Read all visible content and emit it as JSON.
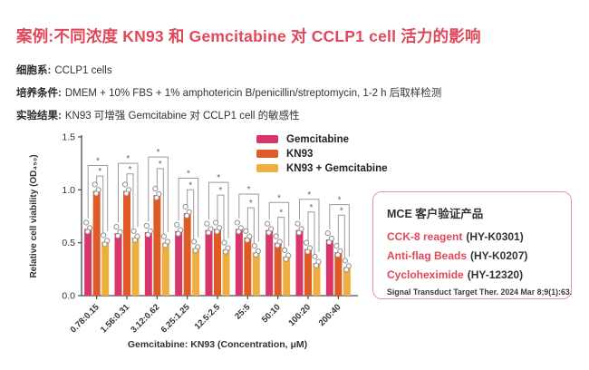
{
  "page": {
    "background": "#ffffff",
    "accent_color": "#e0485a"
  },
  "header": {
    "title": "案例:不同浓度 KN93 和 Gemcitabine 对 CCLP1 cell 活力的影响",
    "info_lines": [
      {
        "label": "细胞系:",
        "text": "CCLP1 cells"
      },
      {
        "label": "培养条件:",
        "text": "DMEM + 10% FBS + 1% amphotericin B/penicillin/streptomycin, 1-2 h 后取样检测"
      },
      {
        "label": "实验结果:",
        "text": "KN93 可增强 Gemcitabine 对 CCLP1 cell 的敏感性"
      }
    ]
  },
  "chart_data": {
    "type": "bar",
    "title": "",
    "xlabel": "Gemcitabine: KN93 (Concentration, μM)",
    "ylabel": "Relative cell viability (OD₄₅₀)",
    "ylim": [
      0,
      1.5
    ],
    "yticks": [
      "0.0",
      "0.5",
      "1.0",
      "1.5"
    ],
    "grid": false,
    "legend_position": "top-right",
    "categories": [
      "0.78:0.15",
      "1.56:0.31",
      "3.12:0.62",
      "6.25:1.25",
      "12.5:2.5",
      "25:5",
      "50:10",
      "100:20",
      "200:40"
    ],
    "series": [
      {
        "name": "Gemcitabine",
        "color": "#d8356a",
        "values": [
          0.63,
          0.59,
          0.6,
          0.61,
          0.62,
          0.63,
          0.62,
          0.62,
          0.53
        ]
      },
      {
        "name": "KN93",
        "color": "#e05a26",
        "values": [
          0.99,
          0.99,
          0.95,
          0.78,
          0.63,
          0.55,
          0.5,
          0.44,
          0.41
        ]
      },
      {
        "name": "KN93 + Gemcitabine",
        "color": "#efaf40",
        "values": [
          0.51,
          0.55,
          0.5,
          0.45,
          0.44,
          0.41,
          0.37,
          0.31,
          0.27
        ]
      }
    ],
    "significance": {
      "label": "*",
      "line_color": "#9b9b9b",
      "brackets": [
        {
          "outer": 1.23,
          "inner": 1.13
        },
        {
          "outer": 1.25,
          "inner": 1.15
        },
        {
          "outer": 1.31,
          "inner": 1.2
        },
        {
          "outer": 1.11,
          "inner": 1.0
        },
        {
          "outer": 1.07,
          "inner": 0.95
        },
        {
          "outer": 0.96,
          "inner": 0.83
        },
        {
          "outer": 0.88,
          "inner": 0.74
        },
        {
          "outer": 0.91,
          "inner": 0.79
        },
        {
          "outer": 0.86,
          "inner": 0.76
        }
      ]
    },
    "replicate_point_offsets": [
      [
        0.06,
        -2
      ],
      [
        0.01,
        2
      ],
      [
        -0.025,
        -0.5
      ]
    ],
    "point_style": {
      "fill": "#ffffff",
      "stroke": "#8f8f8f"
    },
    "axis_color": "#4a4a4a"
  },
  "panel": {
    "title": "MCE 客户验证产品",
    "border_color": "#ef93a0",
    "products": [
      {
        "name": "CCK-8 reagent",
        "code": "(HY-K0301)"
      },
      {
        "name": "Anti-flag Beads",
        "code": "(HY-K0207)"
      },
      {
        "name": "Cycloheximide",
        "code": "(HY-12320)"
      }
    ],
    "citation": "Signal Transduct Target Ther. 2024 Mar 8;9(1):63."
  }
}
